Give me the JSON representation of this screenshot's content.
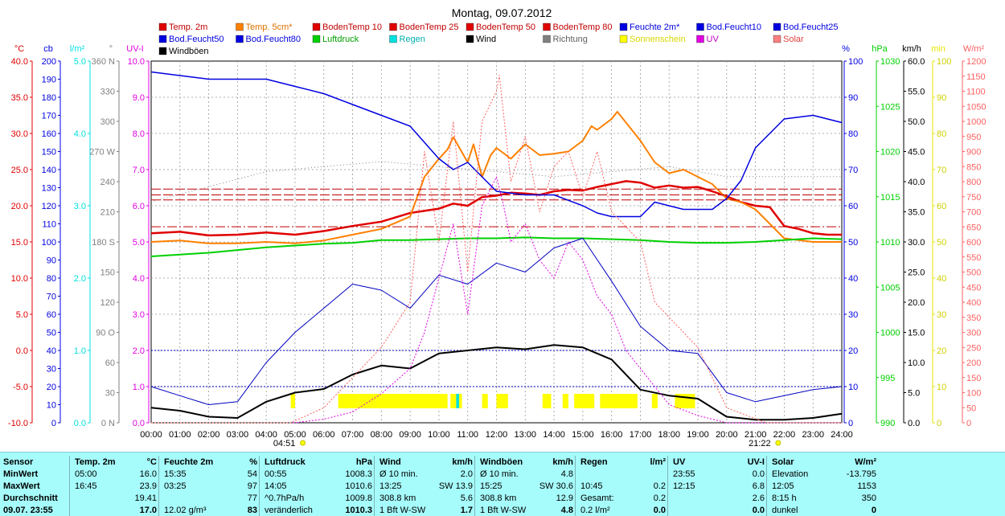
{
  "chart_data": {
    "type": "line",
    "title": "Montag, 09.07.2012",
    "x_ticks": [
      "00:00",
      "01:00",
      "02:00",
      "03:00",
      "04:00",
      "05:00",
      "06:00",
      "07:00",
      "08:00",
      "09:00",
      "10:00",
      "11:00",
      "12:00",
      "13:00",
      "14:00",
      "15:00",
      "16:00",
      "17:00",
      "18:00",
      "19:00",
      "20:00",
      "21:00",
      "22:00",
      "23:00",
      "24:00"
    ],
    "xlim": [
      0,
      24
    ],
    "sunrise_label": "04:51",
    "sunrise_hour": 4.85,
    "sunset_label": "21:22",
    "sunset_hour": 21.37,
    "grid": true,
    "legend": [
      {
        "name": "Temp. 2m",
        "color": "#e00000"
      },
      {
        "name": "Temp. 5cm*",
        "color": "#ff8000"
      },
      {
        "name": "BodenTemp 10",
        "color": "#e00000"
      },
      {
        "name": "BodenTemp 25",
        "color": "#e00000"
      },
      {
        "name": "BodenTemp 50",
        "color": "#e00000"
      },
      {
        "name": "BodenTemp 80",
        "color": "#e00000"
      },
      {
        "name": "Feuchte 2m*",
        "color": "#0000e0"
      },
      {
        "name": "Bod.Feucht10",
        "color": "#0000e0"
      },
      {
        "name": "Bod.Feucht25",
        "color": "#0000e0"
      },
      {
        "name": "Bod.Feucht50",
        "color": "#0000e0"
      },
      {
        "name": "Bod.Feucht80",
        "color": "#0000e0"
      },
      {
        "name": "Luftdruck",
        "color": "#00d000"
      },
      {
        "name": "Regen",
        "color": "#00e0e0"
      },
      {
        "name": "Wind",
        "color": "#000000"
      },
      {
        "name": "Richtung",
        "color": "#808080"
      },
      {
        "name": "Sonnenschein",
        "color": "#ffff00"
      },
      {
        "name": "UV",
        "color": "#e000e0"
      },
      {
        "name": "Solar",
        "color": "#ff8080"
      },
      {
        "name": "Windböen",
        "color": "#000000"
      }
    ],
    "axes": [
      {
        "unit": "°C",
        "color": "#e00000",
        "min": -10,
        "max": 40,
        "ticks": [
          "40.0",
          "35.0",
          "30.0",
          "25.0",
          "20.0",
          "15.0",
          "10.0",
          "5.0",
          "0.0",
          "-5.0",
          "-10.0"
        ]
      },
      {
        "unit": "cb",
        "color": "#0000e0",
        "min": 0,
        "max": 200,
        "ticks": [
          "200",
          "190",
          "180",
          "170",
          "160",
          "150",
          "140",
          "130",
          "120",
          "110",
          "100",
          "90",
          "80",
          "70",
          "60",
          "50",
          "40",
          "30",
          "20",
          "10",
          "0"
        ]
      },
      {
        "unit": "l/m²",
        "color": "#00e0e0",
        "min": 0,
        "max": 5,
        "ticks": [
          "5.0",
          "4.0",
          "3.0",
          "2.0",
          "1.0",
          "0.0"
        ]
      },
      {
        "unit": "°",
        "color": "#808080",
        "min": 0,
        "max": 360,
        "ticks": [
          "360 N",
          "330",
          "300",
          "270 W",
          "240",
          "210",
          "180 S",
          "150",
          "120",
          "90 O",
          "60",
          "30",
          "0 N"
        ]
      },
      {
        "unit": "UV-I",
        "color": "#e000e0",
        "min": 0,
        "max": 10,
        "ticks": [
          "10.0",
          "9.0",
          "8.0",
          "7.0",
          "6.0",
          "5.0",
          "4.0",
          "3.0",
          "2.0",
          "1.0",
          "0.0"
        ]
      },
      {
        "unit": "%",
        "color": "#0000e0",
        "min": 0,
        "max": 100,
        "ticks": [
          "100",
          "90",
          "80",
          "70",
          "60",
          "50",
          "40",
          "30",
          "20",
          "10",
          "0"
        ]
      },
      {
        "unit": "hPa",
        "color": "#00d000",
        "min": 990,
        "max": 1030,
        "ticks": [
          "1030",
          "1025",
          "1020",
          "1015",
          "1010",
          "1005",
          "1000",
          "995",
          "990"
        ]
      },
      {
        "unit": "km/h",
        "color": "#000000",
        "min": 0,
        "max": 60,
        "ticks": [
          "60.0",
          "55.0",
          "50.0",
          "45.0",
          "40.0",
          "35.0",
          "30.0",
          "25.0",
          "20.0",
          "15.0",
          "10.0",
          "5.0",
          "0.0"
        ]
      },
      {
        "unit": "min",
        "color": "#e6e600",
        "min": 0,
        "max": 100,
        "ticks": [
          "100",
          "90",
          "80",
          "70",
          "60",
          "50",
          "40",
          "30",
          "20",
          "10",
          "0"
        ]
      },
      {
        "unit": "W/m²",
        "color": "#ff6060",
        "min": 0,
        "max": 1200,
        "ticks": [
          "1200",
          "1150",
          "1100",
          "1050",
          "1000",
          "950",
          "900",
          "850",
          "800",
          "750",
          "700",
          "650",
          "600",
          "550",
          "500",
          "450",
          "400",
          "350",
          "300",
          "250",
          "200",
          "150",
          "100",
          "50",
          "0"
        ]
      }
    ],
    "series": [
      {
        "name": "Temp. 2m",
        "axis": "°C",
        "color": "#e00000",
        "width": 2.5,
        "x": [
          0,
          1,
          2,
          3,
          4,
          5,
          6,
          7,
          8,
          9,
          10,
          10.5,
          11,
          11.5,
          12,
          12.5,
          13,
          13.5,
          14,
          14.5,
          15,
          15.5,
          16,
          16.5,
          17,
          17.5,
          18,
          18.5,
          19,
          19.5,
          20,
          20.5,
          21,
          21.5,
          22,
          22.5,
          23,
          23.5,
          24
        ],
        "y": [
          16.2,
          16.4,
          15.9,
          16.0,
          16.3,
          16.0,
          16.5,
          17.2,
          17.8,
          19.0,
          19.6,
          20.3,
          20.0,
          21.2,
          21.4,
          21.8,
          21.7,
          21.5,
          22.0,
          22.2,
          22.1,
          22.6,
          23.0,
          23.4,
          23.2,
          22.5,
          22.8,
          22.5,
          22.6,
          22.0,
          21.3,
          20.5,
          20.0,
          19.8,
          17.2,
          16.8,
          16.2,
          16.0,
          16.0
        ]
      },
      {
        "name": "Temp. 5cm*",
        "axis": "°C",
        "color": "#ff8000",
        "width": 2,
        "x": [
          0,
          1,
          2,
          3,
          4,
          5,
          6,
          7,
          8,
          9,
          9.5,
          10,
          10.3,
          10.5,
          11,
          11.2,
          11.5,
          11.8,
          12,
          12.5,
          13,
          13.5,
          14,
          14.5,
          15,
          15.3,
          15.5,
          16,
          16.2,
          16.5,
          17,
          17.5,
          18,
          18.5,
          19,
          19.5,
          20,
          20.5,
          21,
          21.5,
          22,
          23,
          24
        ],
        "y": [
          15.0,
          15.2,
          14.8,
          14.8,
          15.0,
          14.8,
          15.2,
          16.0,
          16.8,
          18.5,
          24.0,
          26.5,
          27.8,
          29.5,
          26.0,
          28.5,
          24.0,
          27.0,
          28.0,
          26.5,
          28.5,
          27.0,
          27.2,
          27.5,
          29.0,
          31.0,
          30.5,
          32.0,
          33.0,
          31.5,
          29.0,
          26.0,
          24.5,
          25.0,
          24.0,
          23.0,
          21.0,
          20.5,
          19.5,
          17.5,
          15.5,
          15.0,
          15.0
        ]
      },
      {
        "name": "BodenTemp 10",
        "axis": "°C",
        "color": "#c00000",
        "width": 1,
        "dash": "12 3",
        "x": [
          0,
          24
        ],
        "y": [
          22.3,
          22.3
        ]
      },
      {
        "name": "BodenTemp 25",
        "axis": "°C",
        "color": "#c00000",
        "width": 1,
        "dash": "12 3",
        "x": [
          0,
          24
        ],
        "y": [
          21.5,
          21.5
        ]
      },
      {
        "name": "BodenTemp 50",
        "axis": "°C",
        "color": "#c00000",
        "width": 1,
        "dash": "12 3",
        "x": [
          0,
          24
        ],
        "y": [
          20.8,
          20.8
        ]
      },
      {
        "name": "BodenTemp 80",
        "axis": "°C",
        "color": "#c00000",
        "width": 1,
        "dash": "12 3 2 3",
        "x": [
          0,
          24
        ],
        "y": [
          17.1,
          17.1
        ]
      },
      {
        "name": "Feuchte 2m*",
        "axis": "%",
        "color": "#0000e0",
        "width": 1.5,
        "x": [
          0,
          1,
          2,
          3,
          4,
          5,
          6,
          7,
          8,
          9,
          10,
          10.5,
          11,
          11.5,
          12,
          13,
          14,
          15,
          15.5,
          16,
          17,
          17.5,
          18,
          18.5,
          19,
          19.5,
          20,
          20.5,
          21,
          21.5,
          22,
          23,
          24
        ],
        "y": [
          97,
          96,
          95,
          95,
          95,
          93,
          91,
          88,
          85,
          82,
          73,
          70,
          72,
          68,
          64,
          63,
          63,
          60,
          58,
          57,
          57,
          61,
          60,
          59,
          59,
          59,
          62,
          67,
          76,
          80,
          84,
          85,
          83
        ]
      },
      {
        "name": "Luftdruck",
        "axis": "hPa",
        "color": "#00d000",
        "width": 2,
        "x": [
          0,
          1,
          2,
          3,
          4,
          5,
          6,
          7,
          8,
          9,
          10,
          11,
          12,
          13,
          14,
          15,
          16,
          17,
          18,
          19,
          20,
          21,
          22,
          23,
          24
        ],
        "y": [
          1008.4,
          1008.6,
          1008.8,
          1009.1,
          1009.4,
          1009.6,
          1009.8,
          1009.9,
          1010.2,
          1010.2,
          1010.3,
          1010.4,
          1010.4,
          1010.5,
          1010.4,
          1010.4,
          1010.3,
          1010.2,
          1010.0,
          1009.9,
          1009.9,
          1010.0,
          1010.2,
          1010.4,
          1010.3
        ]
      },
      {
        "name": "Wind",
        "axis": "km/h",
        "color": "#000000",
        "width": 2,
        "x": [
          0,
          1,
          2,
          3,
          4,
          5,
          6,
          7,
          8,
          9,
          10,
          11,
          12,
          13,
          14,
          15,
          16,
          17,
          18,
          19,
          20,
          21,
          22,
          23,
          24
        ],
        "y": [
          2.5,
          2.0,
          1.0,
          0.8,
          3.5,
          5.0,
          5.6,
          8.0,
          9.5,
          9.0,
          11.5,
          12.0,
          12.5,
          12.2,
          12.9,
          12.5,
          10.5,
          5.5,
          4.5,
          4.0,
          1.0,
          0.5,
          0.5,
          0.8,
          1.5
        ]
      },
      {
        "name": "Windböen",
        "axis": "km/h",
        "color": "#0000c0",
        "width": 1,
        "x": [
          0,
          1,
          2,
          3,
          4,
          5,
          6,
          7,
          8,
          9,
          10,
          11,
          12,
          13,
          14,
          15,
          16,
          17,
          18,
          19,
          20,
          21,
          22,
          23,
          24
        ],
        "y": [
          6.0,
          4.5,
          3.0,
          3.5,
          10.0,
          15.0,
          19.0,
          23.0,
          22.0,
          19.0,
          24.5,
          23.0,
          26.5,
          25.0,
          29.0,
          30.6,
          23.5,
          16.0,
          12.0,
          11.5,
          5.0,
          3.5,
          4.5,
          5.5,
          6.0
        ]
      },
      {
        "name": "UV",
        "axis": "UV-I",
        "color": "#e000e0",
        "width": 1,
        "dash": "2 2",
        "x": [
          0,
          5,
          6,
          7,
          8,
          9,
          9.5,
          10,
          10.5,
          11,
          11.5,
          12,
          12.25,
          12.5,
          13,
          13.5,
          14,
          14.5,
          15,
          15.5,
          16,
          16.5,
          17,
          17.5,
          18,
          19,
          20,
          21,
          24
        ],
        "y": [
          0,
          0,
          0.1,
          0.3,
          0.8,
          1.5,
          2.5,
          4.0,
          5.5,
          3.0,
          6.0,
          6.8,
          6.0,
          5.0,
          5.5,
          4.5,
          4.0,
          5.0,
          4.5,
          3.5,
          3.0,
          2.0,
          1.5,
          1.0,
          0.5,
          0.2,
          0,
          0,
          0
        ]
      },
      {
        "name": "Solar",
        "axis": "W/m²",
        "color": "#ff6060",
        "width": 1,
        "dash": "2 2",
        "x": [
          0,
          4.85,
          6,
          7,
          8,
          9,
          9.5,
          10,
          10.5,
          11,
          11.5,
          12,
          12.1,
          12.5,
          13,
          13.5,
          14,
          14.5,
          15,
          15.5,
          16,
          16.5,
          17,
          17.5,
          18,
          18.5,
          19,
          20,
          21.37,
          24
        ],
        "y": [
          0,
          0,
          50,
          150,
          250,
          400,
          900,
          600,
          1000,
          500,
          1000,
          1100,
          1153,
          800,
          950,
          700,
          850,
          900,
          750,
          900,
          700,
          650,
          600,
          400,
          350,
          300,
          250,
          50,
          0,
          0
        ]
      },
      {
        "name": "Richtung",
        "axis": "°",
        "color": "#808080",
        "width": 1,
        "dash": "1 3",
        "x": [
          0,
          2,
          4,
          6,
          8,
          10,
          12,
          14,
          16,
          18,
          19,
          20,
          22,
          24
        ],
        "y": [
          220,
          235,
          250,
          255,
          260,
          255,
          250,
          245,
          250,
          255,
          250,
          245,
          245,
          245
        ]
      }
    ],
    "sunshine_bars": [
      [
        4.85,
        5.0
      ],
      [
        6.5,
        7.2
      ],
      [
        7.2,
        9.5
      ],
      [
        9.5,
        10.3
      ],
      [
        10.4,
        10.8
      ],
      [
        11.5,
        11.7
      ],
      [
        12.0,
        12.4
      ],
      [
        13.6,
        13.9
      ],
      [
        14.3,
        14.5
      ],
      [
        14.7,
        15.4
      ],
      [
        15.6,
        16.9
      ],
      [
        17.4,
        17.6
      ],
      [
        18.2,
        18.9
      ]
    ],
    "sunshine_value": 4,
    "rain_bars": [
      [
        10.6,
        10.7
      ]
    ],
    "rain_value": 0.2
  },
  "stats": {
    "headers": [
      "Sensor",
      "Temp. 2m",
      "°C",
      "Feuchte 2m",
      "%",
      "Luftdruck",
      "hPa",
      "Wind",
      "km/h",
      "Windböen",
      "km/h",
      "Regen",
      "l/m²",
      "UV",
      "UV-I",
      "Solar",
      "W/m²"
    ],
    "rows": [
      [
        "MinWert",
        "05:00",
        "16.0",
        "15:35",
        "54",
        "00:55",
        "1008.3",
        "Ø 10 min.",
        "2.0",
        "Ø 10 min.",
        "4.8",
        "",
        "",
        "23:55",
        "0.0",
        "Elevation",
        "-13.795"
      ],
      [
        "MaxWert",
        "16:45",
        "23.9",
        "03:25",
        "97",
        "14:05",
        "1010.6",
        "13:25",
        "SW 13.9",
        "15:25",
        "SW 30.6",
        "10:45",
        "0.2",
        "12:15",
        "6.8",
        "12:05",
        "1153"
      ],
      [
        "Durchschnitt",
        "",
        "19.41",
        "",
        "77",
        "^0.7hPa/h",
        "1009.8",
        "308.8 km",
        "5.6",
        "308.8 km",
        "12.9",
        "Gesamt:",
        "0.2",
        "",
        "2.6",
        "8:15 h",
        "350"
      ],
      [
        "09.07. 23:55",
        "",
        "17.0",
        "12.02 g/m³",
        "83",
        "veränderlich",
        "1010.3",
        "1 Bft W-SW",
        "1.7",
        "1 Bft W-SW",
        "4.8",
        "0.2 l/m²",
        "0.0",
        "",
        "0.0",
        "dunkel",
        "0"
      ]
    ]
  }
}
